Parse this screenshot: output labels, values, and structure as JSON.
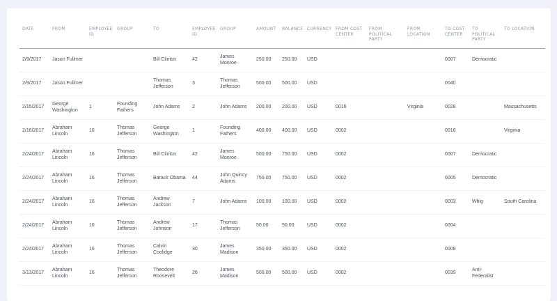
{
  "table": {
    "columns": [
      {
        "key": "date",
        "label": "Date"
      },
      {
        "key": "from",
        "label": "From"
      },
      {
        "key": "from_employee_id",
        "label": "Employee ID"
      },
      {
        "key": "from_group",
        "label": "Group"
      },
      {
        "key": "to",
        "label": "To"
      },
      {
        "key": "to_employee_id",
        "label": "Employee ID"
      },
      {
        "key": "to_group",
        "label": "Group"
      },
      {
        "key": "amount",
        "label": "Amount"
      },
      {
        "key": "balance",
        "label": "Balance"
      },
      {
        "key": "currency",
        "label": "Currency"
      },
      {
        "key": "from_cost_center",
        "label": "From Cost Center"
      },
      {
        "key": "from_political_party",
        "label": "From Political Party"
      },
      {
        "key": "from_location",
        "label": "From Location"
      },
      {
        "key": "to_cost_center",
        "label": "To Cost Center"
      },
      {
        "key": "to_political_party",
        "label": "To Political Party"
      },
      {
        "key": "to_location",
        "label": "To Location"
      }
    ],
    "rows": [
      [
        "2/9/2017",
        "Jason Fullmer",
        "",
        "",
        "Bill Clinton",
        "42",
        "James Monroe",
        "250.00",
        "250.00",
        "USD",
        "",
        "",
        "",
        "0007",
        "Democratic",
        ""
      ],
      [
        "2/9/2017",
        "Jason Fullmer",
        "",
        "",
        "Thomas Jefferson",
        "3",
        "Thomas Jefferson",
        "500.00",
        "500.00",
        "USD",
        "",
        "",
        "",
        "0040",
        "",
        ""
      ],
      [
        "2/15/2017",
        "George Washington",
        "1",
        "Founding Fathers",
        "John Adams",
        "2",
        "John Adams",
        "200.00",
        "200.00",
        "USD",
        "0016",
        "",
        "Virginia",
        "0028",
        "",
        "Massachusetts"
      ],
      [
        "2/16/2017",
        "Abraham Lincoln",
        "16",
        "Thomas Jefferson",
        "George Washington",
        "1",
        "Founding Fathers",
        "400.00",
        "400.00",
        "USD",
        "0002",
        "",
        "",
        "0016",
        "",
        "Virginia"
      ],
      [
        "2/24/2017",
        "Abraham Lincoln",
        "16",
        "Thomas Jefferson",
        "Bill Clinton",
        "42",
        "James Monroe",
        "500.00",
        "750.00",
        "USD",
        "0002",
        "",
        "",
        "0007",
        "Democratic",
        ""
      ],
      [
        "2/24/2017",
        "Abraham Lincoln",
        "16",
        "Thomas Jefferson",
        "Barack Obama",
        "44",
        "John Quincy Adams",
        "750.00",
        "750.00",
        "USD",
        "0002",
        "",
        "",
        "0005",
        "Democratic",
        ""
      ],
      [
        "2/24/2017",
        "Abraham Lincoln",
        "16",
        "Thomas Jefferson",
        "Andrew Jackson",
        "7",
        "John Adams",
        "100.00",
        "100.00",
        "USD",
        "0002",
        "",
        "",
        "0003",
        "Whig",
        "South Carolina"
      ],
      [
        "2/24/2017",
        "Abraham Lincoln",
        "16",
        "Thomas Jefferson",
        "Andrew Johnson",
        "17",
        "Thomas Jefferson",
        "50.00",
        "50.00",
        "USD",
        "0002",
        "",
        "",
        "0004",
        "",
        ""
      ],
      [
        "2/24/2017",
        "Abraham Lincoln",
        "16",
        "Thomas Jefferson",
        "Calvin Coolidge",
        "30",
        "James Madison",
        "350.00",
        "350.00",
        "USD",
        "0002",
        "",
        "",
        "0008",
        "",
        ""
      ],
      [
        "3/13/2017",
        "Abraham Lincoln",
        "16",
        "Thomas Jefferson",
        "Theodore Roosevelt",
        "26",
        "James Madison",
        "500.00",
        "500.00",
        "USD",
        "0002",
        "",
        "",
        "0039",
        "Anti-Federalist",
        ""
      ]
    ]
  }
}
